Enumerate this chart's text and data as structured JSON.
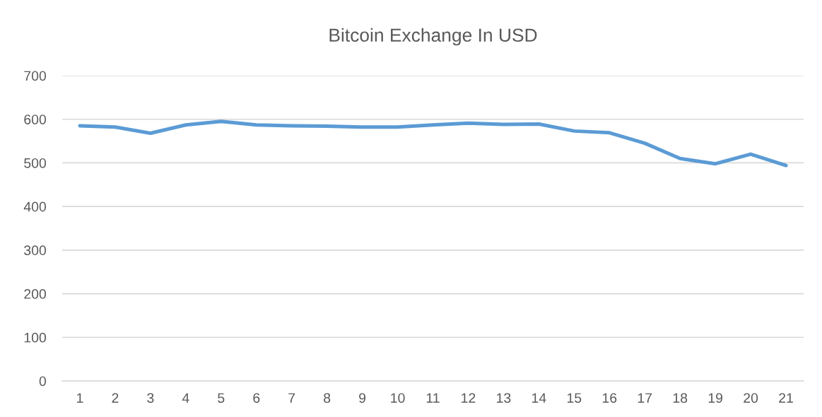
{
  "chart_data": {
    "type": "line",
    "title": "Bitcoin Exchange In USD",
    "categories": [
      "1",
      "2",
      "3",
      "4",
      "5",
      "6",
      "7",
      "8",
      "9",
      "10",
      "11",
      "12",
      "13",
      "14",
      "15",
      "16",
      "17",
      "18",
      "19",
      "20",
      "21"
    ],
    "series": [
      {
        "color": "#5b9bd5",
        "values": [
          585,
          582,
          568,
          587,
          595,
          587,
          585,
          584,
          582,
          582,
          587,
          591,
          588,
          589,
          573,
          569,
          545,
          510,
          498,
          520,
          494
        ]
      }
    ],
    "ylim": [
      0,
      700
    ],
    "yticks": [
      0,
      100,
      200,
      300,
      400,
      500,
      600,
      700
    ],
    "grid": "y",
    "legend": false,
    "marker": "none",
    "line_style": "solid"
  }
}
